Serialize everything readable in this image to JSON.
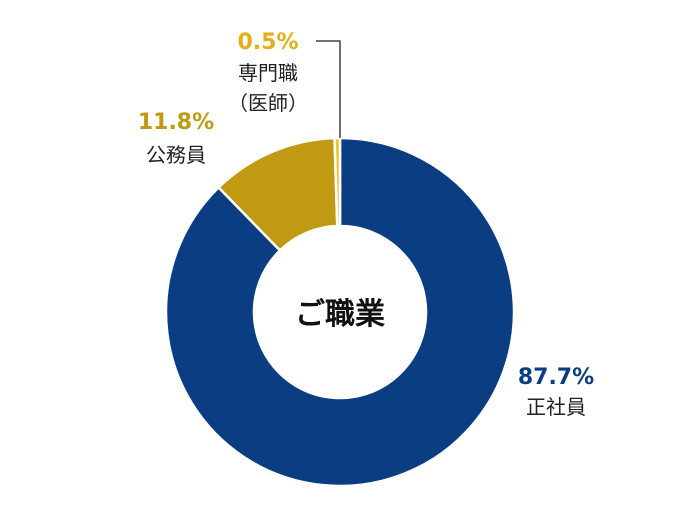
{
  "chart_data": {
    "type": "pie",
    "subtype": "donut",
    "title": "ご職業",
    "slices": [
      {
        "label": "正社員",
        "value": 87.7,
        "value_label": "87.7%",
        "color": "#0B3D82",
        "label_color": "#0B3D82"
      },
      {
        "label": "公務員",
        "value": 11.8,
        "value_label": "11.8%",
        "color": "#C09A12",
        "label_color": "#C09A12"
      },
      {
        "label_lines": [
          "専門職",
          "（医師）"
        ],
        "value": 0.5,
        "value_label": "0.5%",
        "color": "#F2C12E",
        "label_color": "#E3AE17"
      }
    ]
  }
}
